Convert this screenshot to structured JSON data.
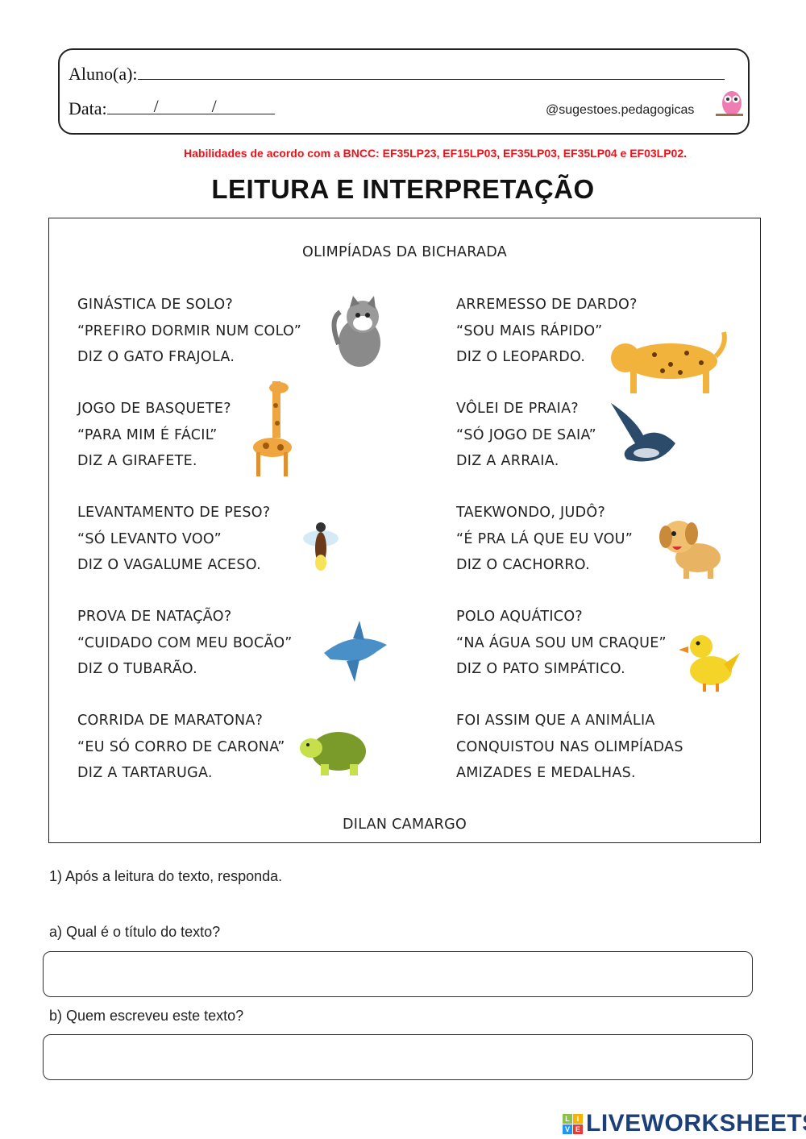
{
  "header": {
    "student_label": "Aluno(a):",
    "date_label": "Data:",
    "date_sep1": "/",
    "date_sep2": "/",
    "handle": "@sugestoes.pedagogicas",
    "bncc": "Habilidades de acordo com a BNCC: EF35LP23, EF15LP03, EF35LP03, EF35LP04 e EF03LP02."
  },
  "page_title": "LEITURA E INTERPRETAÇÃO",
  "poem": {
    "title": "OLIMPÍADAS DA BICHARADA",
    "author": "DILAN CAMARGO",
    "left_stanzas": [
      {
        "lines": [
          "GINÁSTICA DE SOLO?",
          "“PREFIRO DORMIR NUM COLO”",
          "DIZ O GATO FRAJOLA."
        ],
        "icon": "cat"
      },
      {
        "lines": [
          "JOGO DE BASQUETE?",
          "“PARA MIM É FÁCIL”",
          "DIZ A GIRAFETE."
        ],
        "icon": "giraffe"
      },
      {
        "lines": [
          "LEVANTAMENTO DE PESO?",
          "“SÓ LEVANTO VOO”",
          "DIZ O VAGALUME ACESO."
        ],
        "icon": "firefly"
      },
      {
        "lines": [
          "PROVA DE NATAÇÃO?",
          "“CUIDADO COM MEU BOCÃO”",
          "DIZ O TUBARÃO."
        ],
        "icon": "shark"
      },
      {
        "lines": [
          "CORRIDA DE MARATONA?",
          "“EU SÓ CORRO DE CARONA”",
          "DIZ A TARTARUGA."
        ],
        "icon": "turtle"
      }
    ],
    "right_stanzas": [
      {
        "lines": [
          "ARREMESSO DE DARDO?",
          "“SOU MAIS RÁPIDO”",
          "DIZ O LEOPARDO."
        ],
        "icon": "leopard"
      },
      {
        "lines": [
          "VÔLEI DE PRAIA?",
          "“SÓ JOGO DE SAIA”",
          "DIZ A ARRAIA."
        ],
        "icon": "stingray"
      },
      {
        "lines": [
          "TAEKWONDO, JUDÔ?",
          "“É PRA LÁ QUE EU VOU”",
          "DIZ O CACHORRO."
        ],
        "icon": "dog"
      },
      {
        "lines": [
          "POLO AQUÁTICO?",
          "“NA ÁGUA SOU UM CRAQUE”",
          "DIZ O PATO SIMPÁTICO."
        ],
        "icon": "duck"
      },
      {
        "lines": [
          "FOI ASSIM QUE A ANIMÁLIA",
          "CONQUISTOU NAS OLIMPÍADAS",
          "AMIZADES E MEDALHAS."
        ]
      }
    ]
  },
  "questions": {
    "intro": "1) Após a leitura do texto, responda.",
    "a": "a) Qual é o título do texto?",
    "a_answer": "",
    "b": "b) Quem escreveu este texto?",
    "b_answer": ""
  },
  "footer": {
    "brand": "LIVEWORKSHEETS",
    "logo_letters": [
      "L",
      "I",
      "V",
      "E"
    ]
  },
  "colors": {
    "bncc_red": "#e8141b",
    "brand_blue": "#1c3f7a"
  }
}
